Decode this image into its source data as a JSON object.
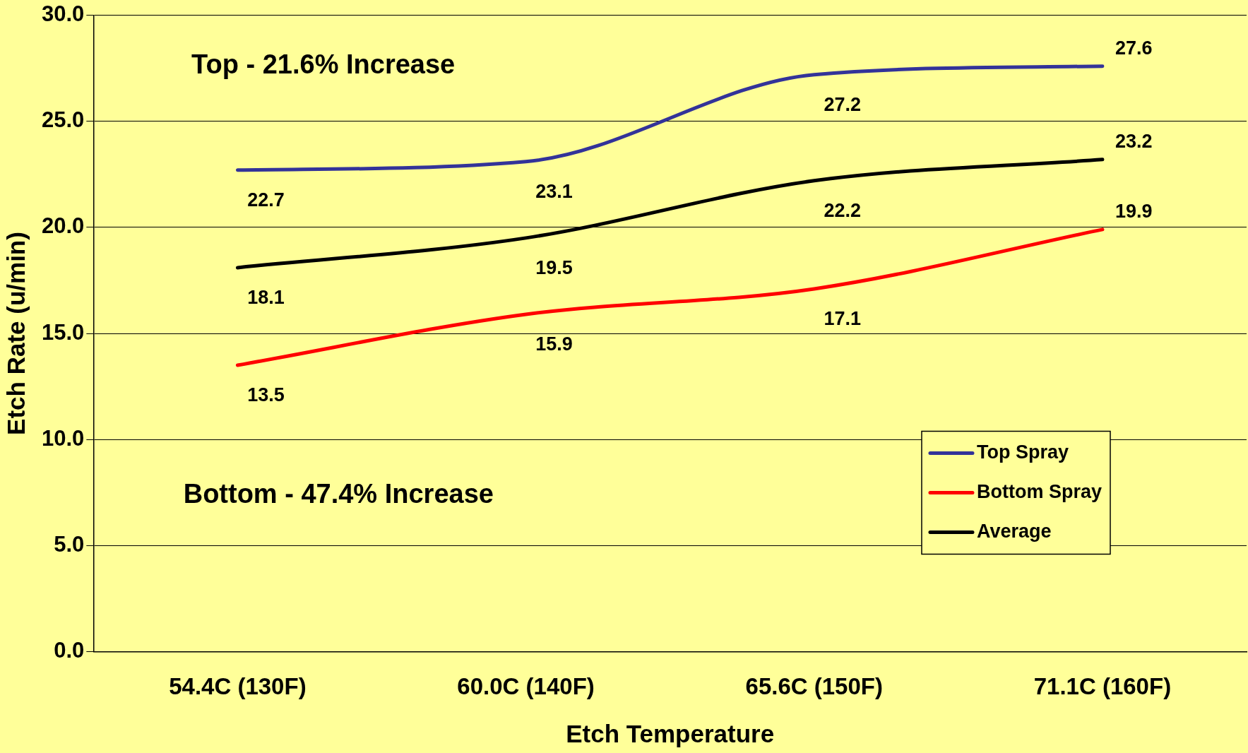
{
  "chart_data": {
    "type": "line",
    "xlabel": "Etch Temperature",
    "ylabel": "Etch Rate (u/min)",
    "categories": [
      "54.4C (130F)",
      "60.0C (140F)",
      "65.6C (150F)",
      "71.1C (160F)"
    ],
    "series": [
      {
        "name": "Top Spray",
        "color": "#333399",
        "values": [
          22.7,
          23.1,
          27.2,
          27.6
        ]
      },
      {
        "name": "Bottom Spray",
        "color": "#ff0000",
        "values": [
          13.5,
          15.9,
          17.1,
          19.9
        ]
      },
      {
        "name": "Average",
        "color": "#000000",
        "values": [
          18.1,
          19.5,
          22.2,
          23.2
        ]
      }
    ],
    "ylim": [
      0,
      30
    ],
    "yticks": [
      {
        "value": 0,
        "label": "0.0"
      },
      {
        "value": 5,
        "label": "5.0"
      },
      {
        "value": 10,
        "label": "10.0"
      },
      {
        "value": 15,
        "label": "15.0"
      },
      {
        "value": 20,
        "label": "20.0"
      },
      {
        "value": 25,
        "label": "25.0"
      },
      {
        "value": 30,
        "label": "30.0"
      }
    ],
    "grid": "y",
    "legend": "bottom right",
    "marker": "none",
    "line_style": "solid",
    "data_labels": true,
    "annotations": [
      "Top - 21.6% Increase",
      "Bottom - 47.4% Increase"
    ]
  }
}
